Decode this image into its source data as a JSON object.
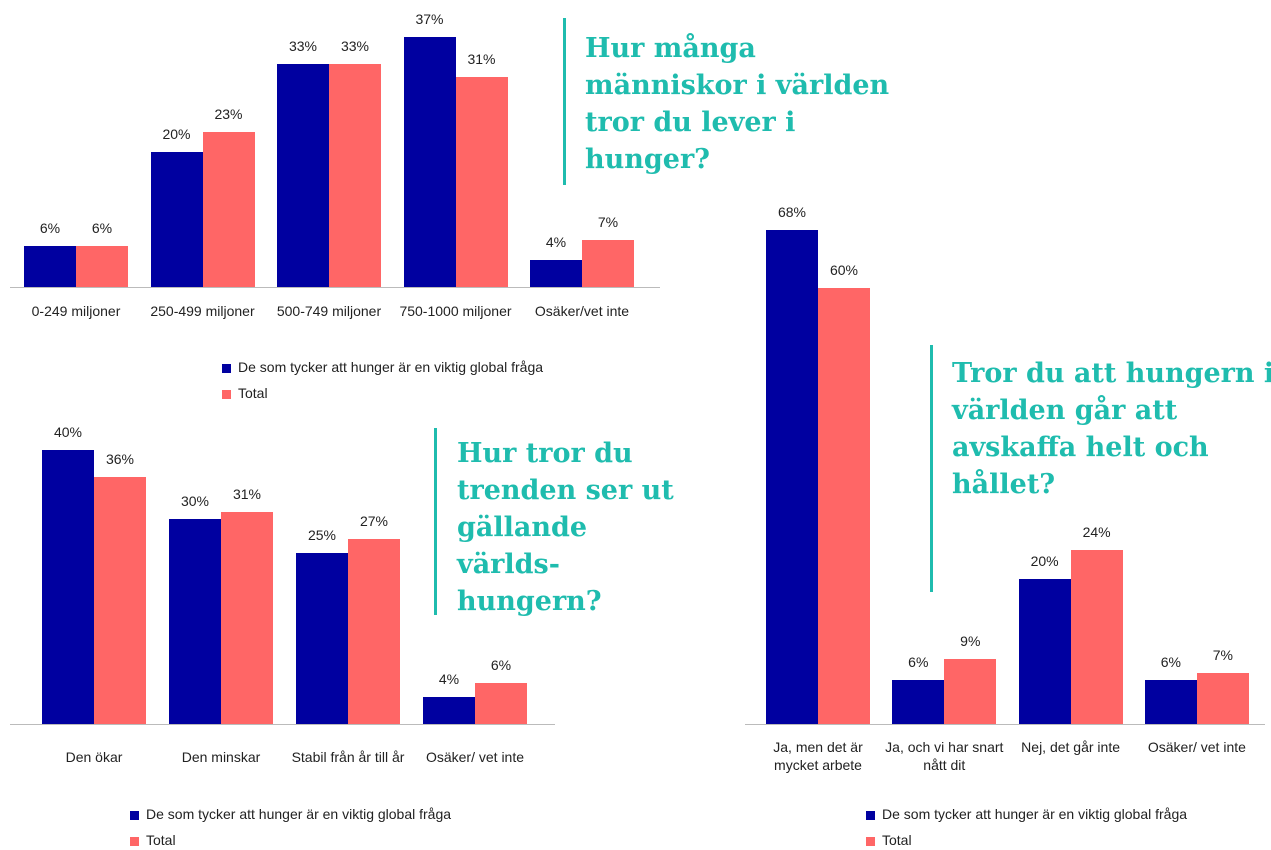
{
  "chart_data": [
    {
      "type": "bar",
      "title": "Hur många människor i världen tror du lever i hunger?",
      "categories": [
        "0-249 miljoner",
        "250-499 miljoner",
        "500-749 miljoner",
        "750-1000 miljoner",
        "Osäker/vet inte"
      ],
      "series": [
        {
          "name": "De som tycker att hunger är en viktig global fråga",
          "color": "#0000a0",
          "values": [
            6,
            20,
            33,
            37,
            4
          ],
          "value_labels": [
            "6%",
            "20%",
            "33%",
            "37%",
            "4%"
          ]
        },
        {
          "name": "Total",
          "color": "#ff6666",
          "values": [
            6,
            23,
            33,
            31,
            7
          ],
          "value_labels": [
            "6%",
            "23%",
            "33%",
            "31%",
            "7%"
          ]
        }
      ]
    },
    {
      "type": "bar",
      "title": "Hur tror du trenden ser ut gällande världs-hungern?",
      "categories": [
        "Den ökar",
        "Den minskar",
        "Stabil från år till år",
        "Osäker/ vet inte"
      ],
      "series": [
        {
          "name": "De som tycker att hunger är en viktig global fråga",
          "color": "#0000a0",
          "values": [
            40,
            30,
            25,
            4
          ],
          "value_labels": [
            "40%",
            "30%",
            "25%",
            "4%"
          ]
        },
        {
          "name": "Total",
          "color": "#ff6666",
          "values": [
            36,
            31,
            27,
            6
          ],
          "value_labels": [
            "36%",
            "31%",
            "27%",
            "6%"
          ]
        }
      ]
    },
    {
      "type": "bar",
      "title": "Tror du att hungern i världen går att avskaffa helt och hållet?",
      "categories": [
        "Ja, men det är mycket arbete",
        "Ja, och vi har snart nått dit",
        "Nej, det går inte",
        "Osäker/ vet inte"
      ],
      "series": [
        {
          "name": "De som tycker att hunger är en viktig global fråga",
          "color": "#0000a0",
          "values": [
            68,
            6,
            20,
            6
          ],
          "value_labels": [
            "68%",
            "6%",
            "20%",
            "6%"
          ]
        },
        {
          "name": "Total",
          "color": "#ff6666",
          "values": [
            60,
            9,
            24,
            7
          ],
          "value_labels": [
            "60%",
            "9%",
            "24%",
            "7%"
          ]
        }
      ]
    }
  ]
}
